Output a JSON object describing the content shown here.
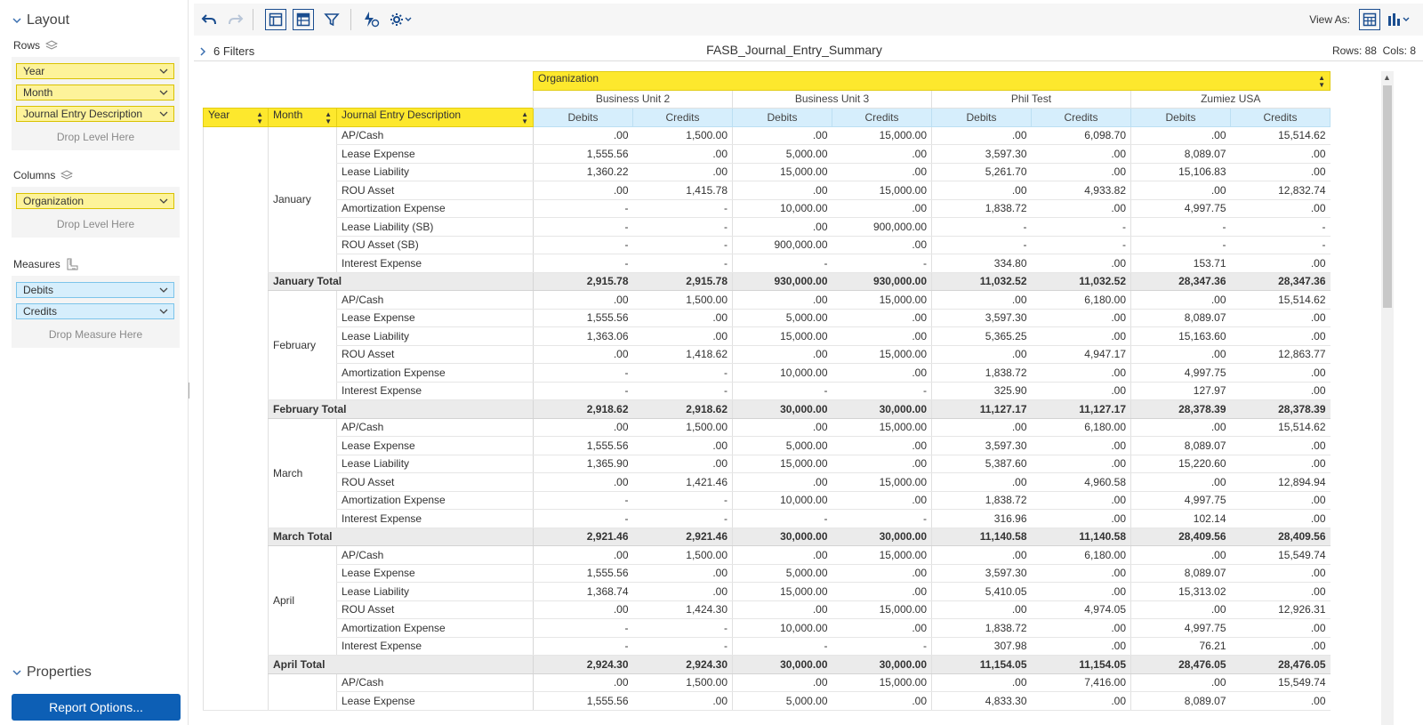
{
  "layout_panel": {
    "title": "Layout",
    "rows_label": "Rows",
    "rows": [
      "Year",
      "Month",
      "Journal Entry Description"
    ],
    "rows_drop_hint": "Drop Level Here",
    "columns_label": "Columns",
    "columns": [
      "Organization"
    ],
    "columns_drop_hint": "Drop Level Here",
    "measures_label": "Measures",
    "measures": [
      "Debits",
      "Credits"
    ],
    "measures_drop_hint": "Drop Measure Here",
    "properties_title": "Properties",
    "report_options_label": "Report Options..."
  },
  "toolbar": {
    "view_as_label": "View As:"
  },
  "filter_bar": {
    "filters_label": "6 Filters",
    "report_title": "FASB_Journal_Entry_Summary",
    "rows_count": "Rows: 88",
    "cols_count": "Cols: 8"
  },
  "grid": {
    "org_header": "Organization",
    "business_units": [
      "Business Unit 2",
      "Business Unit 3",
      "Phil Test",
      "Zumiez USA"
    ],
    "row_headers": [
      "Year",
      "Month",
      "Journal Entry Description"
    ],
    "measure_headers": [
      "Debits",
      "Credits",
      "Debits",
      "Credits",
      "Debits",
      "Credits",
      "Debits",
      "Credits"
    ],
    "months": [
      {
        "name": "January",
        "rows": [
          {
            "desc": "AP/Cash",
            "v": [
              ".00",
              "1,500.00",
              ".00",
              "15,000.00",
              ".00",
              "6,098.70",
              ".00",
              "15,514.62"
            ]
          },
          {
            "desc": "Lease Expense",
            "v": [
              "1,555.56",
              ".00",
              "5,000.00",
              ".00",
              "3,597.30",
              ".00",
              "8,089.07",
              ".00"
            ]
          },
          {
            "desc": "Lease Liability",
            "v": [
              "1,360.22",
              ".00",
              "15,000.00",
              ".00",
              "5,261.70",
              ".00",
              "15,106.83",
              ".00"
            ]
          },
          {
            "desc": "ROU Asset",
            "v": [
              ".00",
              "1,415.78",
              ".00",
              "15,000.00",
              ".00",
              "4,933.82",
              ".00",
              "12,832.74"
            ]
          },
          {
            "desc": "Amortization Expense",
            "v": [
              "-",
              "-",
              "10,000.00",
              ".00",
              "1,838.72",
              ".00",
              "4,997.75",
              ".00"
            ]
          },
          {
            "desc": "Lease Liability (SB)",
            "v": [
              "-",
              "-",
              ".00",
              "900,000.00",
              "-",
              "-",
              "-",
              "-"
            ]
          },
          {
            "desc": "ROU Asset (SB)",
            "v": [
              "-",
              "-",
              "900,000.00",
              ".00",
              "-",
              "-",
              "-",
              "-"
            ]
          },
          {
            "desc": "Interest Expense",
            "v": [
              "-",
              "-",
              "-",
              "-",
              "334.80",
              ".00",
              "153.71",
              ".00"
            ]
          }
        ],
        "total_label": "January Total",
        "total": [
          "2,915.78",
          "2,915.78",
          "930,000.00",
          "930,000.00",
          "11,032.52",
          "11,032.52",
          "28,347.36",
          "28,347.36"
        ]
      },
      {
        "name": "February",
        "rows": [
          {
            "desc": "AP/Cash",
            "v": [
              ".00",
              "1,500.00",
              ".00",
              "15,000.00",
              ".00",
              "6,180.00",
              ".00",
              "15,514.62"
            ]
          },
          {
            "desc": "Lease Expense",
            "v": [
              "1,555.56",
              ".00",
              "5,000.00",
              ".00",
              "3,597.30",
              ".00",
              "8,089.07",
              ".00"
            ]
          },
          {
            "desc": "Lease Liability",
            "v": [
              "1,363.06",
              ".00",
              "15,000.00",
              ".00",
              "5,365.25",
              ".00",
              "15,163.60",
              ".00"
            ]
          },
          {
            "desc": "ROU Asset",
            "v": [
              ".00",
              "1,418.62",
              ".00",
              "15,000.00",
              ".00",
              "4,947.17",
              ".00",
              "12,863.77"
            ]
          },
          {
            "desc": "Amortization Expense",
            "v": [
              "-",
              "-",
              "10,000.00",
              ".00",
              "1,838.72",
              ".00",
              "4,997.75",
              ".00"
            ]
          },
          {
            "desc": "Interest Expense",
            "v": [
              "-",
              "-",
              "-",
              "-",
              "325.90",
              ".00",
              "127.97",
              ".00"
            ]
          }
        ],
        "total_label": "February Total",
        "total": [
          "2,918.62",
          "2,918.62",
          "30,000.00",
          "30,000.00",
          "11,127.17",
          "11,127.17",
          "28,378.39",
          "28,378.39"
        ]
      },
      {
        "name": "March",
        "rows": [
          {
            "desc": "AP/Cash",
            "v": [
              ".00",
              "1,500.00",
              ".00",
              "15,000.00",
              ".00",
              "6,180.00",
              ".00",
              "15,514.62"
            ]
          },
          {
            "desc": "Lease Expense",
            "v": [
              "1,555.56",
              ".00",
              "5,000.00",
              ".00",
              "3,597.30",
              ".00",
              "8,089.07",
              ".00"
            ]
          },
          {
            "desc": "Lease Liability",
            "v": [
              "1,365.90",
              ".00",
              "15,000.00",
              ".00",
              "5,387.60",
              ".00",
              "15,220.60",
              ".00"
            ]
          },
          {
            "desc": "ROU Asset",
            "v": [
              ".00",
              "1,421.46",
              ".00",
              "15,000.00",
              ".00",
              "4,960.58",
              ".00",
              "12,894.94"
            ]
          },
          {
            "desc": "Amortization Expense",
            "v": [
              "-",
              "-",
              "10,000.00",
              ".00",
              "1,838.72",
              ".00",
              "4,997.75",
              ".00"
            ]
          },
          {
            "desc": "Interest Expense",
            "v": [
              "-",
              "-",
              "-",
              "-",
              "316.96",
              ".00",
              "102.14",
              ".00"
            ]
          }
        ],
        "total_label": "March Total",
        "total": [
          "2,921.46",
          "2,921.46",
          "30,000.00",
          "30,000.00",
          "11,140.58",
          "11,140.58",
          "28,409.56",
          "28,409.56"
        ]
      },
      {
        "name": "April",
        "rows": [
          {
            "desc": "AP/Cash",
            "v": [
              ".00",
              "1,500.00",
              ".00",
              "15,000.00",
              ".00",
              "6,180.00",
              ".00",
              "15,549.74"
            ]
          },
          {
            "desc": "Lease Expense",
            "v": [
              "1,555.56",
              ".00",
              "5,000.00",
              ".00",
              "3,597.30",
              ".00",
              "8,089.07",
              ".00"
            ]
          },
          {
            "desc": "Lease Liability",
            "v": [
              "1,368.74",
              ".00",
              "15,000.00",
              ".00",
              "5,410.05",
              ".00",
              "15,313.02",
              ".00"
            ]
          },
          {
            "desc": "ROU Asset",
            "v": [
              ".00",
              "1,424.30",
              ".00",
              "15,000.00",
              ".00",
              "4,974.05",
              ".00",
              "12,926.31"
            ]
          },
          {
            "desc": "Amortization Expense",
            "v": [
              "-",
              "-",
              "10,000.00",
              ".00",
              "1,838.72",
              ".00",
              "4,997.75",
              ".00"
            ]
          },
          {
            "desc": "Interest Expense",
            "v": [
              "-",
              "-",
              "-",
              "-",
              "307.98",
              ".00",
              "76.21",
              ".00"
            ]
          }
        ],
        "total_label": "April Total",
        "total": [
          "2,924.30",
          "2,924.30",
          "30,000.00",
          "30,000.00",
          "11,154.05",
          "11,154.05",
          "28,476.05",
          "28,476.05"
        ]
      },
      {
        "name": "",
        "rows": [
          {
            "desc": "AP/Cash",
            "v": [
              ".00",
              "1,500.00",
              ".00",
              "15,000.00",
              ".00",
              "7,416.00",
              ".00",
              "15,549.74"
            ]
          },
          {
            "desc": "Lease Expense",
            "v": [
              "1,555.56",
              ".00",
              "5,000.00",
              ".00",
              "4,833.30",
              ".00",
              "8,089.07",
              ".00"
            ]
          }
        ]
      }
    ]
  },
  "colors": {
    "yellow_header": "#fde82d",
    "blue_measure": "#d6eefc",
    "primary_button": "#0d5fb5",
    "total_row": "#ebebeb"
  },
  "icons": [
    "undo-icon",
    "redo-icon",
    "layout-icon",
    "grid-layout-icon",
    "filter-icon",
    "auto-refresh-icon",
    "settings-icon",
    "table-view-icon",
    "chart-view-icon",
    "chevron-down-icon",
    "layers-icon",
    "ruler-icon"
  ]
}
